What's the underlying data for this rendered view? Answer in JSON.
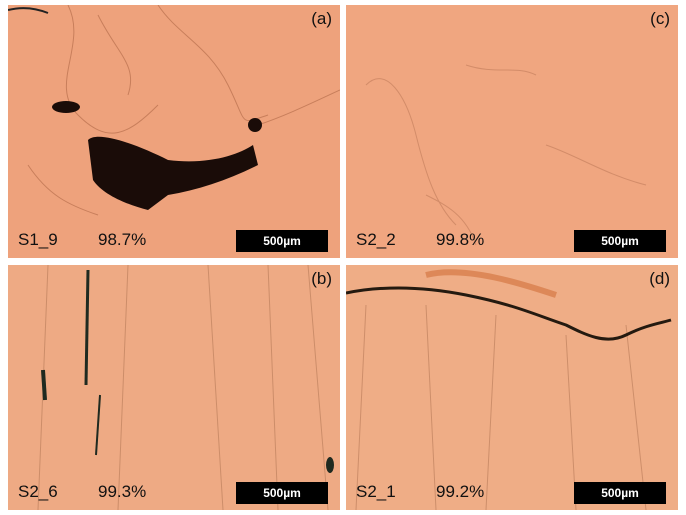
{
  "panels": [
    {
      "label": "(a)",
      "sample": "S1_9",
      "density": "98.7%",
      "scale_bar": "500µm"
    },
    {
      "label": "(c)",
      "sample": "S2_2",
      "density": "99.8%",
      "scale_bar": "500µm"
    },
    {
      "label": "(b)",
      "sample": "S2_6",
      "density": "99.3%",
      "scale_bar": "500µm"
    },
    {
      "label": "(d)",
      "sample": "S2_1",
      "density": "99.2%",
      "scale_bar": "500µm"
    }
  ]
}
